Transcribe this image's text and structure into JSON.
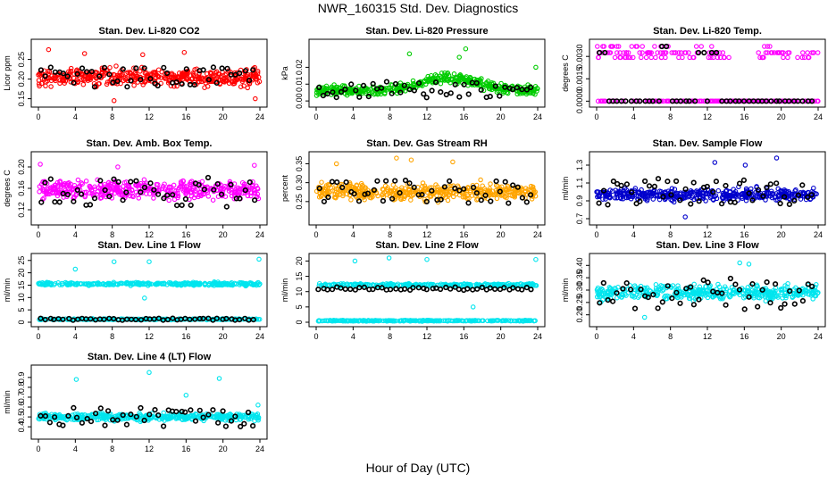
{
  "title": "NWR_160315  Std. Dev. Diagnostics",
  "xlabel": "Hour of Day (UTC)",
  "chart_data": [
    {
      "type": "scatter",
      "title": "Stan. Dev. Li-820 CO2",
      "ylabel": "Licor ppm",
      "xlim": [
        0,
        24
      ],
      "xticks": [
        0,
        4,
        8,
        12,
        16,
        20,
        24
      ],
      "ylim": [
        0.14,
        0.29
      ],
      "yticks": [
        0.15,
        0.2,
        0.25
      ],
      "ytick_labels": [
        "0.15",
        "0.20",
        "0.25"
      ],
      "colors": [
        "#ff0000"
      ],
      "band_center": [
        0.205
      ],
      "band_spread": [
        0.03
      ],
      "n_points": [
        420
      ],
      "black_range": [
        0.18,
        0.23
      ],
      "outliers": [
        {
          "x": 1.1,
          "y": 0.275
        },
        {
          "x": 8.2,
          "y": 0.145
        },
        {
          "x": 15.8,
          "y": 0.268
        },
        {
          "x": 23.5,
          "y": 0.15
        },
        {
          "x": 5,
          "y": 0.265
        },
        {
          "x": 11.3,
          "y": 0.262
        }
      ]
    },
    {
      "type": "scatter",
      "title": "Stan. Dev. Li-820 Pressure",
      "ylabel": "kPa",
      "xlim": [
        0,
        24
      ],
      "xticks": [
        0,
        4,
        8,
        12,
        16,
        20,
        24
      ],
      "ylim": [
        -0.001,
        0.034
      ],
      "yticks": [
        0.0,
        0.01,
        0.02
      ],
      "ytick_labels": [
        "0.00",
        "0.01",
        "0.02"
      ],
      "colors": [
        "#00cc00"
      ],
      "band_center": [
        0.006
      ],
      "band_spread": [
        0.004
      ],
      "n_points": [
        420
      ],
      "trend": true,
      "black_range": [
        0.002,
        0.012
      ],
      "outliers": [
        {
          "x": 16.2,
          "y": 0.031
        },
        {
          "x": 10.1,
          "y": 0.028
        },
        {
          "x": 15.5,
          "y": 0.026
        },
        {
          "x": 23.8,
          "y": 0.02
        }
      ]
    },
    {
      "type": "scatter",
      "title": "Stan. Dev. Li-820 Temp.",
      "ylabel": "degrees C",
      "xlim": [
        0,
        24
      ],
      "xticks": [
        0,
        4,
        8,
        12,
        16,
        20,
        24
      ],
      "ylim": [
        -0.0001,
        0.00385
      ],
      "yticks": [
        0.0,
        0.0015,
        0.003
      ],
      "ytick_labels": [
        "0.0000",
        "0.0015",
        "0.0030"
      ],
      "colors": [
        "#ff00ff"
      ],
      "levels": [
        0.0,
        0.00293,
        0.00325,
        0.00367
      ],
      "n_points": [
        300
      ],
      "black_range": [
        0.0,
        0.0037
      ],
      "outliers": []
    },
    {
      "type": "scatter",
      "title": "Stan. Dev. Amb. Box Temp.",
      "ylabel": "degrees C",
      "xlim": [
        0,
        24
      ],
      "xticks": [
        0,
        4,
        8,
        12,
        16,
        20,
        24
      ],
      "ylim": [
        0.1,
        0.22
      ],
      "yticks": [
        0.12,
        0.16,
        0.2
      ],
      "ytick_labels": [
        "0.12",
        "0.16",
        "0.20"
      ],
      "colors": [
        "#ff00ff"
      ],
      "band_center": [
        0.158
      ],
      "band_spread": [
        0.022
      ],
      "n_points": [
        420
      ],
      "black_range": [
        0.125,
        0.18
      ],
      "outliers": [
        {
          "x": 0.2,
          "y": 0.205
        },
        {
          "x": 23.4,
          "y": 0.203
        },
        {
          "x": 8.6,
          "y": 0.2
        }
      ]
    },
    {
      "type": "scatter",
      "title": "Stan. Dev. Gas Stream RH",
      "ylabel": "percent",
      "xlim": [
        0,
        24
      ],
      "xticks": [
        0,
        4,
        8,
        12,
        16,
        20,
        24
      ],
      "ylim": [
        0.2,
        0.37
      ],
      "yticks": [
        0.25,
        0.3,
        0.35
      ],
      "ytick_labels": [
        "0.25",
        "0.30",
        "0.35"
      ],
      "colors": [
        "#ffa500"
      ],
      "band_center": [
        0.275
      ],
      "band_spread": [
        0.03
      ],
      "n_points": [
        420
      ],
      "black_range": [
        0.245,
        0.31
      ],
      "outliers": [
        {
          "x": 8.7,
          "y": 0.365
        },
        {
          "x": 10.3,
          "y": 0.36
        },
        {
          "x": 14.8,
          "y": 0.355
        },
        {
          "x": 2.2,
          "y": 0.35
        }
      ]
    },
    {
      "type": "scatter",
      "title": "Stan. Dev. Sample Flow",
      "ylabel": "ml/min",
      "xlim": [
        0,
        24
      ],
      "xticks": [
        0,
        4,
        8,
        12,
        16,
        20,
        24
      ],
      "ylim": [
        0.68,
        1.4
      ],
      "yticks": [
        0.7,
        0.9,
        1.1,
        1.3
      ],
      "ytick_labels": [
        "0.7",
        "0.9",
        "1.1",
        "1.3"
      ],
      "colors": [
        "#0000cc"
      ],
      "band_center": [
        0.97
      ],
      "band_spread": [
        0.09
      ],
      "n_points": [
        420
      ],
      "black_range": [
        0.85,
        1.15
      ],
      "outliers": [
        {
          "x": 12.8,
          "y": 1.33
        },
        {
          "x": 16.1,
          "y": 1.3
        },
        {
          "x": 19.5,
          "y": 1.38
        },
        {
          "x": 9.6,
          "y": 0.72
        }
      ]
    },
    {
      "type": "scatter",
      "title": "Stan. Dev. Line 1 Flow",
      "ylabel": "ml/min",
      "xlim": [
        0,
        24
      ],
      "xticks": [
        0,
        4,
        8,
        12,
        16,
        20,
        24
      ],
      "ylim": [
        0,
        26
      ],
      "yticks": [
        0,
        5,
        10,
        15,
        20,
        25
      ],
      "ytick_labels": [
        "0",
        "5",
        "10",
        "15",
        "20",
        "25"
      ],
      "colors": [
        "#00e5ee",
        "#00e5ee"
      ],
      "band_center": [
        15.5,
        1.2
      ],
      "band_spread": [
        0.8,
        0.3
      ],
      "n_points": [
        300,
        250
      ],
      "black_range": [
        0.8,
        1.6
      ],
      "outliers": [
        {
          "x": 4,
          "y": 21.5
        },
        {
          "x": 8.2,
          "y": 24.5
        },
        {
          "x": 12,
          "y": 24.5
        },
        {
          "x": 23.9,
          "y": 25.5
        },
        {
          "x": 11.5,
          "y": 9.8
        }
      ]
    },
    {
      "type": "scatter",
      "title": "Stan. Dev. Line 2 Flow",
      "ylabel": "ml/min",
      "xlim": [
        0,
        24
      ],
      "xticks": [
        0,
        4,
        8,
        12,
        16,
        20,
        24
      ],
      "ylim": [
        0,
        21
      ],
      "yticks": [
        0,
        5,
        10,
        15,
        20
      ],
      "ytick_labels": [
        "0",
        "5",
        "10",
        "15",
        "20"
      ],
      "colors": [
        "#00e5ee",
        "#00e5ee"
      ],
      "band_center": [
        12.2,
        0.5
      ],
      "band_spread": [
        0.6,
        0.2
      ],
      "n_points": [
        300,
        250
      ],
      "black_range": [
        10.5,
        11.5
      ],
      "outliers": [
        {
          "x": 4.2,
          "y": 20
        },
        {
          "x": 7.9,
          "y": 21
        },
        {
          "x": 12,
          "y": 20.5
        },
        {
          "x": 23.8,
          "y": 20.5
        },
        {
          "x": 17,
          "y": 5
        }
      ]
    },
    {
      "type": "scatter",
      "title": "Stan. Dev. Line 3 Flow",
      "ylabel": "ml/min",
      "xlim": [
        0,
        24
      ],
      "xticks": [
        0,
        4,
        8,
        12,
        16,
        20,
        24
      ],
      "ylim": [
        0.17,
        0.43
      ],
      "yticks": [
        0.2,
        0.25,
        0.3,
        0.35,
        0.4
      ],
      "ytick_labels": [
        "0.20",
        "0.25",
        "0.30",
        "0.35",
        "0.40"
      ],
      "colors": [
        "#00e5ee"
      ],
      "band_center": [
        0.29
      ],
      "band_spread": [
        0.04
      ],
      "n_points": [
        420
      ],
      "black_range": [
        0.22,
        0.35
      ],
      "outliers": [
        {
          "x": 15.5,
          "y": 0.41
        },
        {
          "x": 16.5,
          "y": 0.405
        },
        {
          "x": 5.2,
          "y": 0.19
        }
      ]
    },
    {
      "type": "scatter",
      "title": "Stan. Dev. Line 4 (LT) Flow",
      "ylabel": "ml/min",
      "xlim": [
        0,
        24
      ],
      "xticks": [
        0,
        4,
        8,
        12,
        16,
        20,
        24
      ],
      "ylim": [
        0.32,
        0.98
      ],
      "yticks": [
        0.4,
        0.5,
        0.6,
        0.7,
        0.8,
        0.9
      ],
      "ytick_labels": [
        "0.4",
        "0.5",
        "0.6",
        "0.7",
        "0.8",
        "0.9"
      ],
      "colors": [
        "#00e5ee"
      ],
      "band_center": [
        0.5
      ],
      "band_spread": [
        0.05
      ],
      "n_points": [
        420
      ],
      "black_range": [
        0.4,
        0.6
      ],
      "outliers": [
        {
          "x": 4.1,
          "y": 0.88
        },
        {
          "x": 12,
          "y": 0.95
        },
        {
          "x": 19.6,
          "y": 0.89
        },
        {
          "x": 16,
          "y": 0.72
        },
        {
          "x": 23.8,
          "y": 0.62
        }
      ]
    }
  ]
}
